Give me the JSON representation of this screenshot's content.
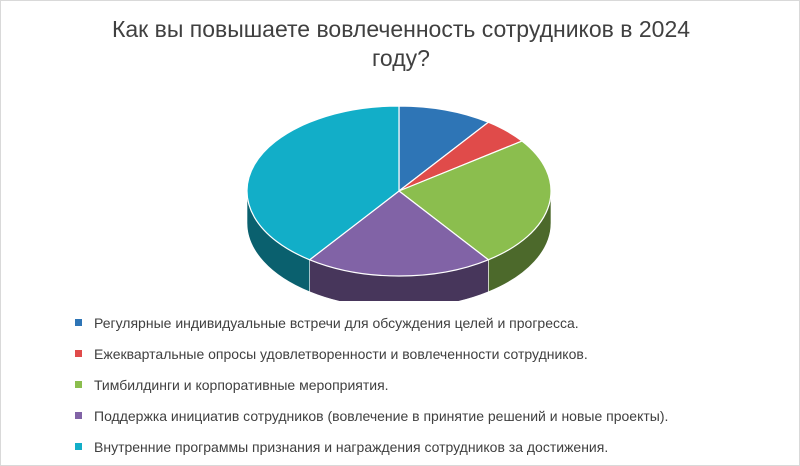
{
  "chart_data": {
    "type": "pie",
    "title": "Как вы повышаете вовлеченность сотрудников в 2024 году?",
    "categories": [
      "Регулярные индивидуальные встречи для обсуждения целей и прогресса.",
      "Ежеквартальные опросы удовлетворенности и вовлеченности сотрудников.",
      "Тимбилдинги и корпоративные мероприятия.",
      "Поддержка инициатив сотрудников (вовлечение в принятие решений и новые проекты).",
      "Внутренние программы признания и награждения сотрудников за достижения."
    ],
    "values": [
      10,
      5,
      25,
      20,
      40
    ],
    "colors": [
      "#2E75B6",
      "#E04B4A",
      "#8BBE4E",
      "#8163A6",
      "#12AEC8"
    ],
    "legend_position": "bottom",
    "style": "3d"
  }
}
